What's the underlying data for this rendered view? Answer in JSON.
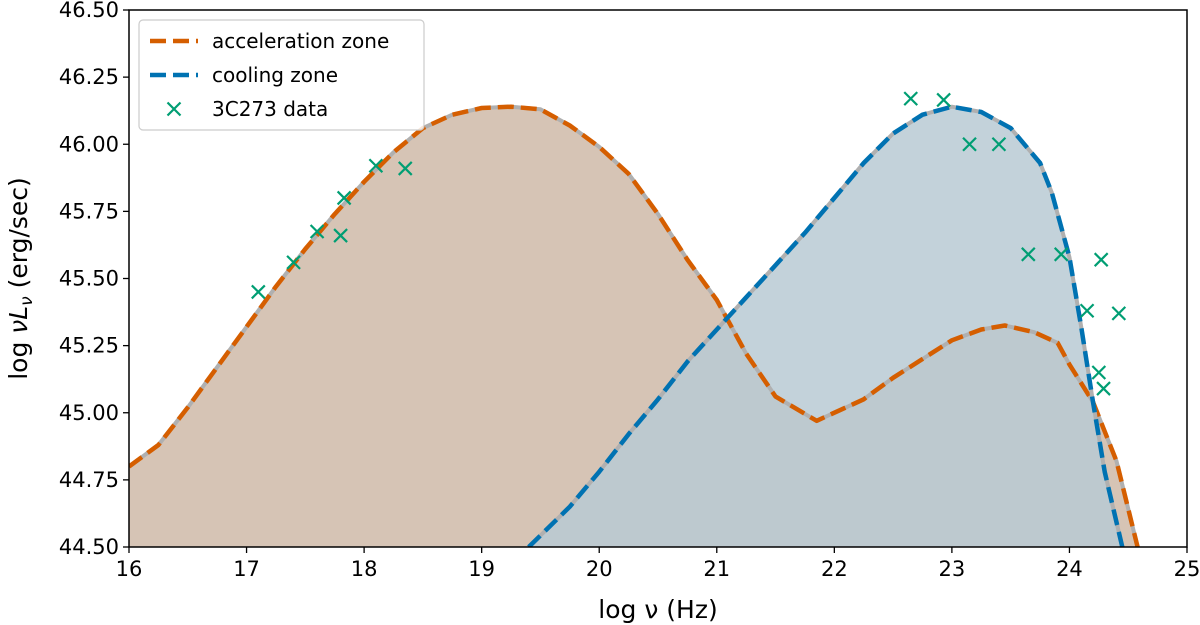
{
  "chart_data": {
    "type": "line",
    "title": "",
    "xlabel": "log ν (Hz)",
    "ylabel": "log νLν (erg/sec)",
    "ylabel_parts": {
      "prefix": "log ",
      "nu": "ν",
      "L": "L",
      "sub": "ν",
      "suffix": " (erg/sec)"
    },
    "xlim": [
      16,
      25
    ],
    "ylim": [
      44.5,
      46.5
    ],
    "xticks": [
      16,
      17,
      18,
      19,
      20,
      21,
      22,
      23,
      24,
      25
    ],
    "xtick_labels": [
      "16",
      "17",
      "18",
      "19",
      "20",
      "21",
      "22",
      "23",
      "24",
      "25"
    ],
    "yticks": [
      44.5,
      44.75,
      45.0,
      45.25,
      45.5,
      45.75,
      46.0,
      46.25,
      46.5
    ],
    "ytick_labels": [
      "44.50",
      "44.75",
      "45.00",
      "45.25",
      "45.50",
      "45.75",
      "46.00",
      "46.25",
      "46.50"
    ],
    "grid": false,
    "legend_position": "top-left",
    "series": [
      {
        "name": "acceleration zone",
        "style": "dashed",
        "color": "#d55e00",
        "fill_color": "#d6c4b5",
        "x": [
          16.0,
          16.25,
          16.5,
          16.75,
          17.0,
          17.25,
          17.5,
          17.75,
          18.0,
          18.25,
          18.5,
          18.75,
          19.0,
          19.25,
          19.5,
          19.75,
          20.0,
          20.25,
          20.5,
          20.75,
          21.0,
          21.25,
          21.5,
          21.85,
          22.25,
          22.5,
          22.75,
          23.0,
          23.25,
          23.45,
          23.7,
          23.9,
          24.0,
          24.2,
          24.4,
          24.58
        ],
        "y": [
          44.8,
          44.88,
          45.02,
          45.17,
          45.32,
          45.47,
          45.61,
          45.74,
          45.86,
          45.97,
          46.06,
          46.11,
          46.135,
          46.14,
          46.13,
          46.07,
          45.99,
          45.89,
          45.74,
          45.57,
          45.42,
          45.22,
          45.06,
          44.97,
          45.05,
          45.13,
          45.2,
          45.27,
          45.31,
          45.325,
          45.3,
          45.26,
          45.18,
          45.04,
          44.82,
          44.5
        ]
      },
      {
        "name": "cooling zone",
        "style": "dashed",
        "color": "#0072b2",
        "fill_color": "#b9cad4",
        "x": [
          19.4,
          19.75,
          20.0,
          20.25,
          20.5,
          20.75,
          21.0,
          21.25,
          21.5,
          21.75,
          22.0,
          22.25,
          22.5,
          22.75,
          23.0,
          23.25,
          23.5,
          23.75,
          23.85,
          24.0,
          24.1,
          24.2,
          24.3,
          24.45
        ],
        "y": [
          44.5,
          44.65,
          44.78,
          44.92,
          45.05,
          45.19,
          45.31,
          45.43,
          45.55,
          45.67,
          45.8,
          45.93,
          46.04,
          46.11,
          46.14,
          46.12,
          46.06,
          45.93,
          45.82,
          45.58,
          45.32,
          45.04,
          44.78,
          44.5
        ]
      }
    ],
    "scatter": {
      "name": "3C273 data",
      "marker": "x",
      "color": "#009e73",
      "x": [
        17.1,
        17.4,
        17.6,
        17.8,
        17.83,
        18.1,
        18.35,
        22.65,
        22.93,
        23.15,
        23.4,
        23.65,
        23.93,
        24.15,
        24.27,
        24.42,
        24.25,
        24.29
      ],
      "y": [
        45.45,
        45.56,
        45.675,
        45.66,
        45.8,
        45.92,
        45.91,
        46.17,
        46.165,
        46.0,
        46.0,
        45.59,
        45.59,
        45.38,
        45.57,
        45.37,
        45.15,
        45.09
      ]
    }
  }
}
